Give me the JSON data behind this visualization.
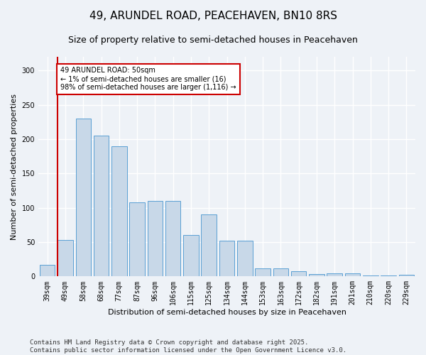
{
  "title": "49, ARUNDEL ROAD, PEACEHAVEN, BN10 8RS",
  "subtitle": "Size of property relative to semi-detached houses in Peacehaven",
  "xlabel": "Distribution of semi-detached houses by size in Peacehaven",
  "ylabel": "Number of semi-detached properties",
  "categories": [
    "39sqm",
    "49sqm",
    "58sqm",
    "68sqm",
    "77sqm",
    "87sqm",
    "96sqm",
    "106sqm",
    "115sqm",
    "125sqm",
    "134sqm",
    "144sqm",
    "153sqm",
    "163sqm",
    "172sqm",
    "182sqm",
    "191sqm",
    "201sqm",
    "210sqm",
    "220sqm",
    "229sqm"
  ],
  "values": [
    17,
    53,
    230,
    205,
    190,
    108,
    110,
    110,
    60,
    90,
    52,
    52,
    12,
    12,
    8,
    3,
    5,
    4,
    1,
    1,
    2
  ],
  "highlight_index": 1,
  "bar_color": "#c8d8e8",
  "bar_edge_color": "#5a9fd4",
  "highlight_line_color": "#cc0000",
  "annotation_text": "49 ARUNDEL ROAD: 50sqm\n← 1% of semi-detached houses are smaller (16)\n98% of semi-detached houses are larger (1,116) →",
  "annotation_box_color": "#ffffff",
  "annotation_box_edge": "#cc0000",
  "footer_text": "Contains HM Land Registry data © Crown copyright and database right 2025.\nContains public sector information licensed under the Open Government Licence v3.0.",
  "ylim": [
    0,
    320
  ],
  "yticks": [
    0,
    50,
    100,
    150,
    200,
    250,
    300
  ],
  "title_fontsize": 11,
  "subtitle_fontsize": 9,
  "axis_label_fontsize": 8,
  "tick_fontsize": 7,
  "annotation_fontsize": 7,
  "footer_fontsize": 6.5,
  "background_color": "#eef2f7",
  "plot_background_color": "#eef2f7",
  "grid_color": "#ffffff",
  "grid_linewidth": 1.0
}
